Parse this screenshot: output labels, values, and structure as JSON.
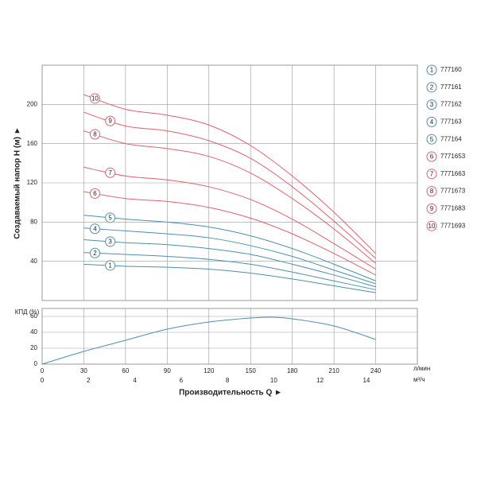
{
  "chart_data": [
    {
      "type": "line",
      "ylabel": "Создаваемый напор H (м) ►",
      "x": [
        30,
        60,
        90,
        120,
        150,
        180,
        210,
        240
      ],
      "xlim": [
        0,
        270
      ],
      "xticks": [
        0,
        30,
        60,
        90,
        120,
        150,
        180,
        210,
        240,
        270
      ],
      "ylim": [
        0,
        240
      ],
      "yticks": [
        40,
        80,
        120,
        160,
        200
      ],
      "grid": true,
      "series": [
        {
          "name": "777160",
          "marker": "1",
          "color": "#4d8fae",
          "values": [
            37,
            35,
            34,
            32,
            28,
            22,
            15,
            8
          ]
        },
        {
          "name": "777161",
          "marker": "2",
          "color": "#4d8fae",
          "values": [
            49,
            47,
            45,
            42,
            37,
            29,
            20,
            11
          ]
        },
        {
          "name": "777162",
          "marker": "3",
          "color": "#4d8fae",
          "values": [
            62,
            59,
            57,
            53,
            47,
            37,
            26,
            14
          ]
        },
        {
          "name": "777163",
          "marker": "4",
          "color": "#4d8fae",
          "values": [
            74,
            71,
            68,
            64,
            56,
            45,
            31,
            17
          ]
        },
        {
          "name": "777164",
          "marker": "5",
          "color": "#4d8fae",
          "values": [
            87,
            83,
            80,
            75,
            66,
            53,
            37,
            20
          ]
        },
        {
          "name": "7771653",
          "marker": "6",
          "color": "#e0626a",
          "values": [
            111,
            104,
            101,
            95,
            84,
            68,
            48,
            26
          ]
        },
        {
          "name": "7771663",
          "marker": "7",
          "color": "#e0626a",
          "values": [
            136,
            127,
            123,
            116,
            103,
            83,
            58,
            32
          ]
        },
        {
          "name": "7771673",
          "marker": "8",
          "color": "#e0626a",
          "values": [
            173,
            160,
            155,
            147,
            130,
            104,
            73,
            38
          ]
        },
        {
          "name": "7771683",
          "marker": "9",
          "color": "#e0626a",
          "values": [
            192,
            178,
            173,
            163,
            145,
            116,
            81,
            43
          ]
        },
        {
          "name": "7771693",
          "marker": "10",
          "color": "#e0626a",
          "values": [
            210,
            195,
            189,
            179,
            158,
            127,
            90,
            48
          ]
        }
      ]
    },
    {
      "type": "line",
      "ylabel": "КПД (%)",
      "xlabel": "Производительность Q ►",
      "xunit": "л/мин",
      "x2unit": "м³/ч",
      "x": [
        0,
        30,
        60,
        90,
        120,
        150,
        165,
        180,
        210,
        240
      ],
      "values": [
        0,
        16,
        30,
        44,
        53,
        58,
        59,
        57,
        48,
        31
      ],
      "color": "#4d8fae",
      "xlim": [
        0,
        270
      ],
      "xticks": [
        0,
        30,
        60,
        90,
        120,
        150,
        180,
        210,
        240
      ],
      "x2lim": [
        0,
        16.2
      ],
      "x2ticks": [
        0,
        2,
        4,
        6,
        8,
        10,
        12,
        14
      ],
      "ylim": [
        0,
        70
      ],
      "yticks": [
        0,
        20,
        40,
        60
      ],
      "grid": true
    }
  ]
}
